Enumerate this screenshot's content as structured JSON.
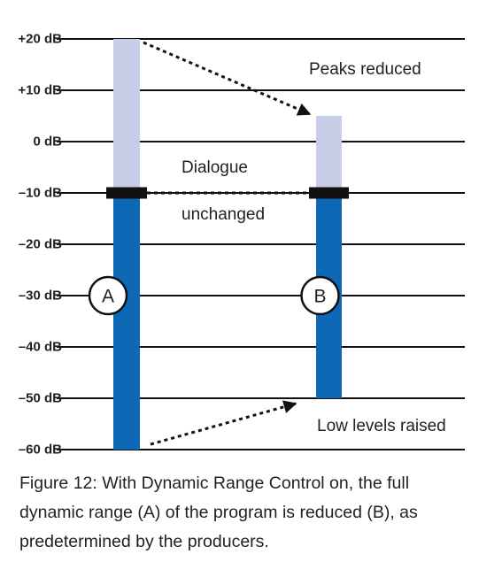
{
  "diagram": {
    "y_axis": {
      "labels": [
        "+20 dB",
        "+10 dB",
        "0 dB",
        "–10 dB",
        "–20 dB",
        "–30 dB",
        "–40 dB",
        "–50 dB",
        "–60 dB"
      ],
      "values": [
        20,
        10,
        0,
        -10,
        -20,
        -30,
        -40,
        -50,
        -60
      ],
      "range": [
        -60,
        20
      ]
    },
    "bars": [
      {
        "name": "A",
        "marker": "A",
        "top_db": 20,
        "dialogue_db": -10,
        "bottom_db": -60
      },
      {
        "name": "B",
        "marker": "B",
        "top_db": 5,
        "dialogue_db": -10,
        "bottom_db": -50
      }
    ],
    "annotations": {
      "peaks": "Peaks reduced",
      "dialogue_line1": "Dialogue",
      "dialogue_line2": "unchanged",
      "low_levels": "Low levels raised"
    },
    "colors": {
      "upper_range": "#c8cde8",
      "lower_range": "#0d68b5",
      "dialogue_marker": "#111111",
      "gridline": "#111111"
    }
  },
  "caption": "Figure 12: With Dynamic Range Control on, the full dynamic range (A) of the program is reduced (B), as predetermined by the producers."
}
